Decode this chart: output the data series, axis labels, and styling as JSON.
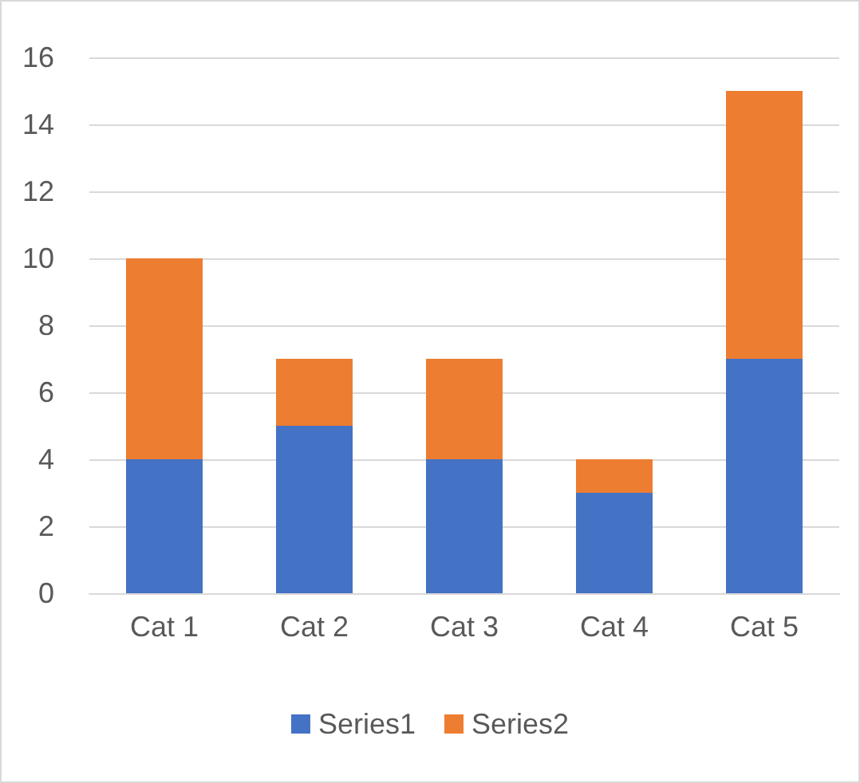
{
  "chart_data": {
    "type": "bar",
    "stacked": true,
    "categories": [
      "Cat 1",
      "Cat 2",
      "Cat 3",
      "Cat 4",
      "Cat 5"
    ],
    "series": [
      {
        "name": "Series1",
        "color": "#4472c4",
        "values": [
          4,
          5,
          4,
          3,
          7
        ]
      },
      {
        "name": "Series2",
        "color": "#ed7d31",
        "values": [
          6,
          2,
          3,
          1,
          8
        ]
      }
    ],
    "ylim": [
      0,
      16
    ],
    "yticks": [
      0,
      2,
      4,
      6,
      8,
      10,
      12,
      14,
      16
    ],
    "grid": "y",
    "legend": "bottom"
  }
}
